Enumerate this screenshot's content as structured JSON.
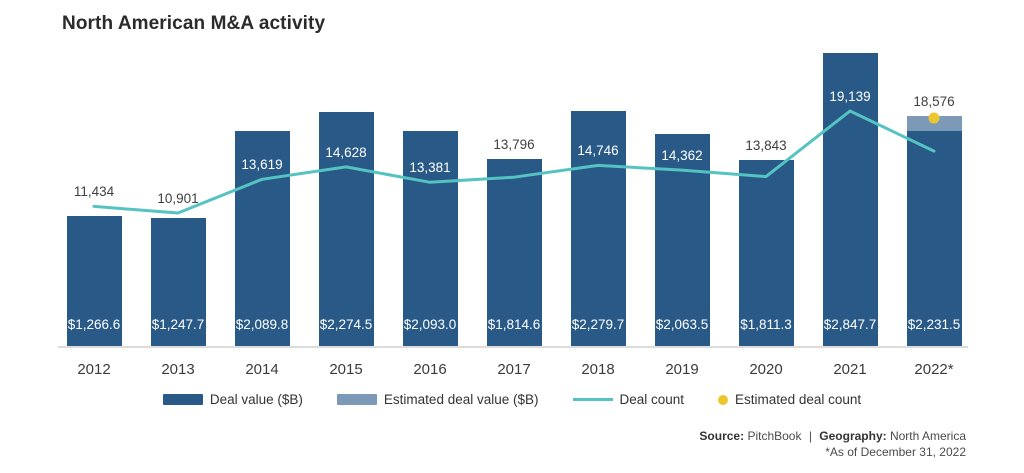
{
  "header": {
    "title": "North American M&A activity"
  },
  "legend": {
    "items": [
      {
        "label": "Deal value ($B)",
        "swatch": "bar",
        "color": "#295a87"
      },
      {
        "label": "Estimated deal value ($B)",
        "swatch": "bar",
        "color": "#7d99b8"
      },
      {
        "label": "Deal count",
        "swatch": "line",
        "color": "#54c3c1"
      },
      {
        "label": "Estimated deal count",
        "swatch": "dot",
        "color": "#ecc62f"
      }
    ]
  },
  "source": {
    "source_label": "Source:",
    "source_value": "PitchBook",
    "divider": "|",
    "geo_label": "Geography:",
    "geo_value": "North America",
    "footnote": "*As of December 31, 2022"
  },
  "colors": {
    "bar": "#295a87",
    "bar_estimated": "#7d99b8",
    "line": "#54c3c1",
    "estimated_dot": "#ecc62f",
    "baseline": "#dcdcdc",
    "label_dark": "#3f3f3f",
    "label_light": "#ffffff"
  },
  "chart_data": {
    "type": "bar",
    "subtype": "combo-bar-line",
    "title": "North American M&A activity",
    "categories": [
      "2012",
      "2013",
      "2014",
      "2015",
      "2016",
      "2017",
      "2018",
      "2019",
      "2020",
      "2021",
      "2022*"
    ],
    "series": [
      {
        "name": "Deal value ($B)",
        "type": "bar",
        "values": [
          1266.6,
          1247.7,
          2089.8,
          2274.5,
          2093.0,
          1814.6,
          2279.7,
          2063.5,
          1811.3,
          2847.7,
          2231.5
        ],
        "labels": [
          "$1,266.6",
          "$1,247.7",
          "$2,089.8",
          "$2,274.5",
          "$2,093.0",
          "$1,814.6",
          "$2,279.7",
          "$2,063.5",
          "$1,811.3",
          "$2,847.7",
          "$2,231.5"
        ]
      },
      {
        "name": "Estimated deal value ($B)",
        "type": "bar-top-segment",
        "applies_to": "2022*",
        "approx_value": 140
      },
      {
        "name": "Deal count",
        "type": "line",
        "values": [
          11434,
          10901,
          13619,
          14628,
          13381,
          13796,
          14746,
          14362,
          13843,
          19139,
          null
        ],
        "labels": [
          "11,434",
          "10,901",
          "13,619",
          "14,628",
          "13,381",
          "13,796",
          "14,746",
          "14,362",
          "13,843",
          "19,139",
          null
        ]
      },
      {
        "name": "Estimated deal count",
        "type": "point",
        "category": "2022*",
        "value": 18576,
        "label": "18,576"
      }
    ],
    "xlabel": "",
    "ylabel": "",
    "ylim_bars": [
      0,
      3000
    ],
    "ylim_counts": [
      8000,
      20000
    ],
    "grid": false,
    "legend_position": "bottom",
    "layout_hints": {
      "line_terminal_2022_count_approx": 15900,
      "note": "deal-count line for 2022 is drawn ending below the yellow estimated-count point"
    }
  }
}
